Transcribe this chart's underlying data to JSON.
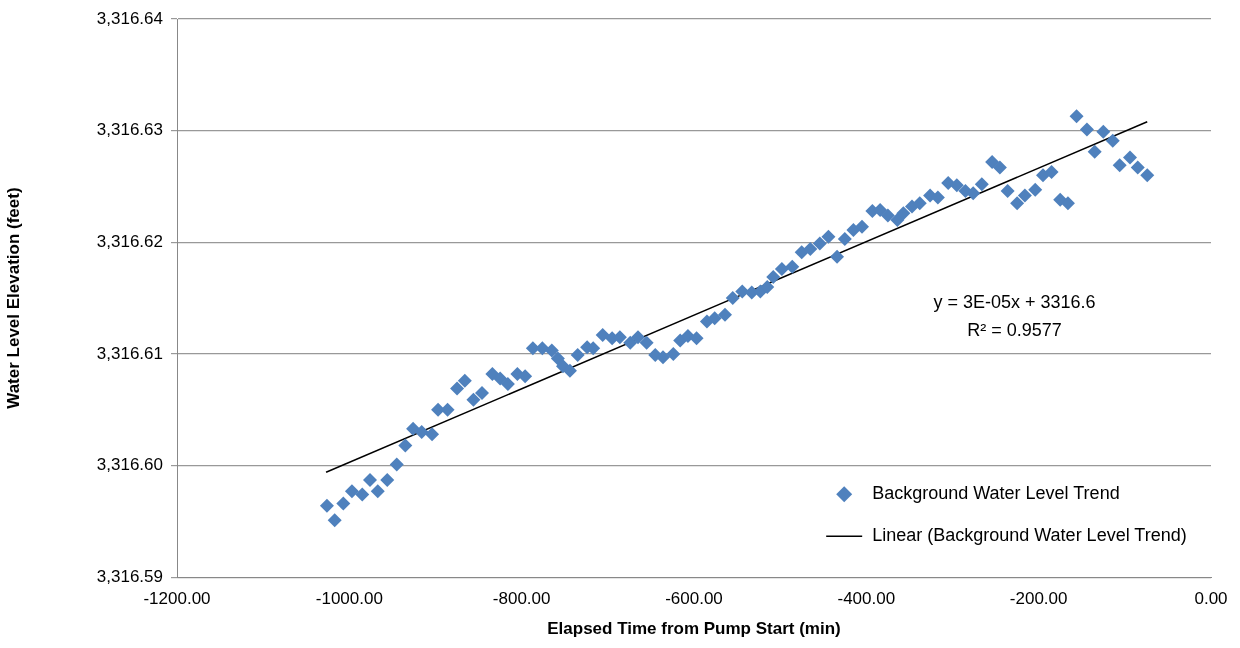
{
  "chart_data": {
    "type": "scatter",
    "xlabel": "Elapsed Time from Pump Start (min)",
    "ylabel": "Water Level Elevation (feet)",
    "xlim": [
      -1200,
      0
    ],
    "xticks": [
      {
        "value": -1200,
        "label": "-1200.00"
      },
      {
        "value": -1000,
        "label": "-1000.00"
      },
      {
        "value": -800,
        "label": "-800.00"
      },
      {
        "value": -600,
        "label": "-600.00"
      },
      {
        "value": -400,
        "label": "-400.00"
      },
      {
        "value": -200,
        "label": "-200.00"
      },
      {
        "value": 0,
        "label": "0.00"
      }
    ],
    "ylim": [
      3316.59,
      3316.64
    ],
    "yticks": [
      {
        "value": 3316.59,
        "label": "3,316.59"
      },
      {
        "value": 3316.6,
        "label": "3,316.60"
      },
      {
        "value": 3316.61,
        "label": "3,316.61"
      },
      {
        "value": 3316.62,
        "label": "3,316.62"
      },
      {
        "value": 3316.63,
        "label": "3,316.63"
      },
      {
        "value": 3316.64,
        "label": "3,316.64"
      }
    ],
    "grid": "y",
    "legend": "bottom right",
    "series": [
      {
        "name": "Background Water Level Trend",
        "marker": "diamond",
        "color": "#4f81bd",
        "x": [
          -1026,
          -1017,
          -1007,
          -997,
          -985,
          -976,
          -967,
          -956,
          -945,
          -935,
          -926,
          -916,
          -904,
          -897,
          -886,
          -875,
          -866,
          -856,
          -846,
          -834,
          -825,
          -816,
          -805,
          -796,
          -787,
          -776,
          -765,
          -758,
          -752,
          -744,
          -735,
          -724,
          -717,
          -706,
          -695,
          -686,
          -674,
          -665,
          -655,
          -645,
          -636,
          -624,
          -616,
          -607,
          -597,
          -585,
          -576,
          -564,
          -555,
          -544,
          -533,
          -523,
          -515,
          -508,
          -498,
          -486,
          -475,
          -465,
          -454,
          -444,
          -434,
          -425,
          -415,
          -405,
          -393,
          -384,
          -375,
          -364,
          -357,
          -347,
          -338,
          -326,
          -317,
          -305,
          -295,
          -285,
          -276,
          -266,
          -254,
          -245,
          -236,
          -225,
          -216,
          -204,
          -195,
          -185,
          -175,
          -166,
          -156,
          -144,
          -135,
          -125,
          -114,
          -106,
          -94,
          -85,
          -74
        ],
        "values": [
          3316.5964,
          3316.5951,
          3316.5966,
          3316.5977,
          3316.5974,
          3316.5987,
          3316.5977,
          3316.5987,
          3316.6001,
          3316.6018,
          3316.6033,
          3316.603,
          3316.6028,
          3316.605,
          3316.605,
          3316.6069,
          3316.6076,
          3316.6059,
          3316.6065,
          3316.6082,
          3316.6078,
          3316.6073,
          3316.6082,
          3316.608,
          3316.6105,
          3316.6105,
          3316.6103,
          3316.6096,
          3316.6089,
          3316.6085,
          3316.6099,
          3316.6106,
          3316.6105,
          3316.6117,
          3316.6114,
          3316.6115,
          3316.611,
          3316.6115,
          3316.611,
          3316.6099,
          3316.6097,
          3316.61,
          3316.6112,
          3316.6116,
          3316.6114,
          3316.6129,
          3316.6132,
          3316.6135,
          3316.615,
          3316.6156,
          3316.6155,
          3316.6156,
          3316.616,
          3316.6169,
          3316.6176,
          3316.6178,
          3316.6191,
          3316.6194,
          3316.6199,
          3316.6205,
          3316.6187,
          3316.6203,
          3316.6211,
          3316.6214,
          3316.6228,
          3316.6229,
          3316.6224,
          3316.622,
          3316.6226,
          3316.6232,
          3316.6235,
          3316.6242,
          3316.624,
          3316.6253,
          3316.6251,
          3316.6246,
          3316.6244,
          3316.6252,
          3316.6272,
          3316.6267,
          3316.6246,
          3316.6235,
          3316.6242,
          3316.6247,
          3316.626,
          3316.6263,
          3316.6238,
          3316.6235,
          3316.6313,
          3316.6301,
          3316.6281,
          3316.6299,
          3316.6291,
          3316.6269,
          3316.6276,
          3316.6267,
          3316.626
        ]
      },
      {
        "name": "Linear (Background Water Level Trend)",
        "type": "line",
        "marker": "none",
        "line_style": "solid",
        "color": "#000000",
        "x": [
          -1027,
          -74
        ],
        "values": [
          3316.5994,
          3316.6308
        ]
      }
    ],
    "annotations": [
      "y = 3E-05x + 3316.6",
      "R² = 0.9577"
    ]
  }
}
